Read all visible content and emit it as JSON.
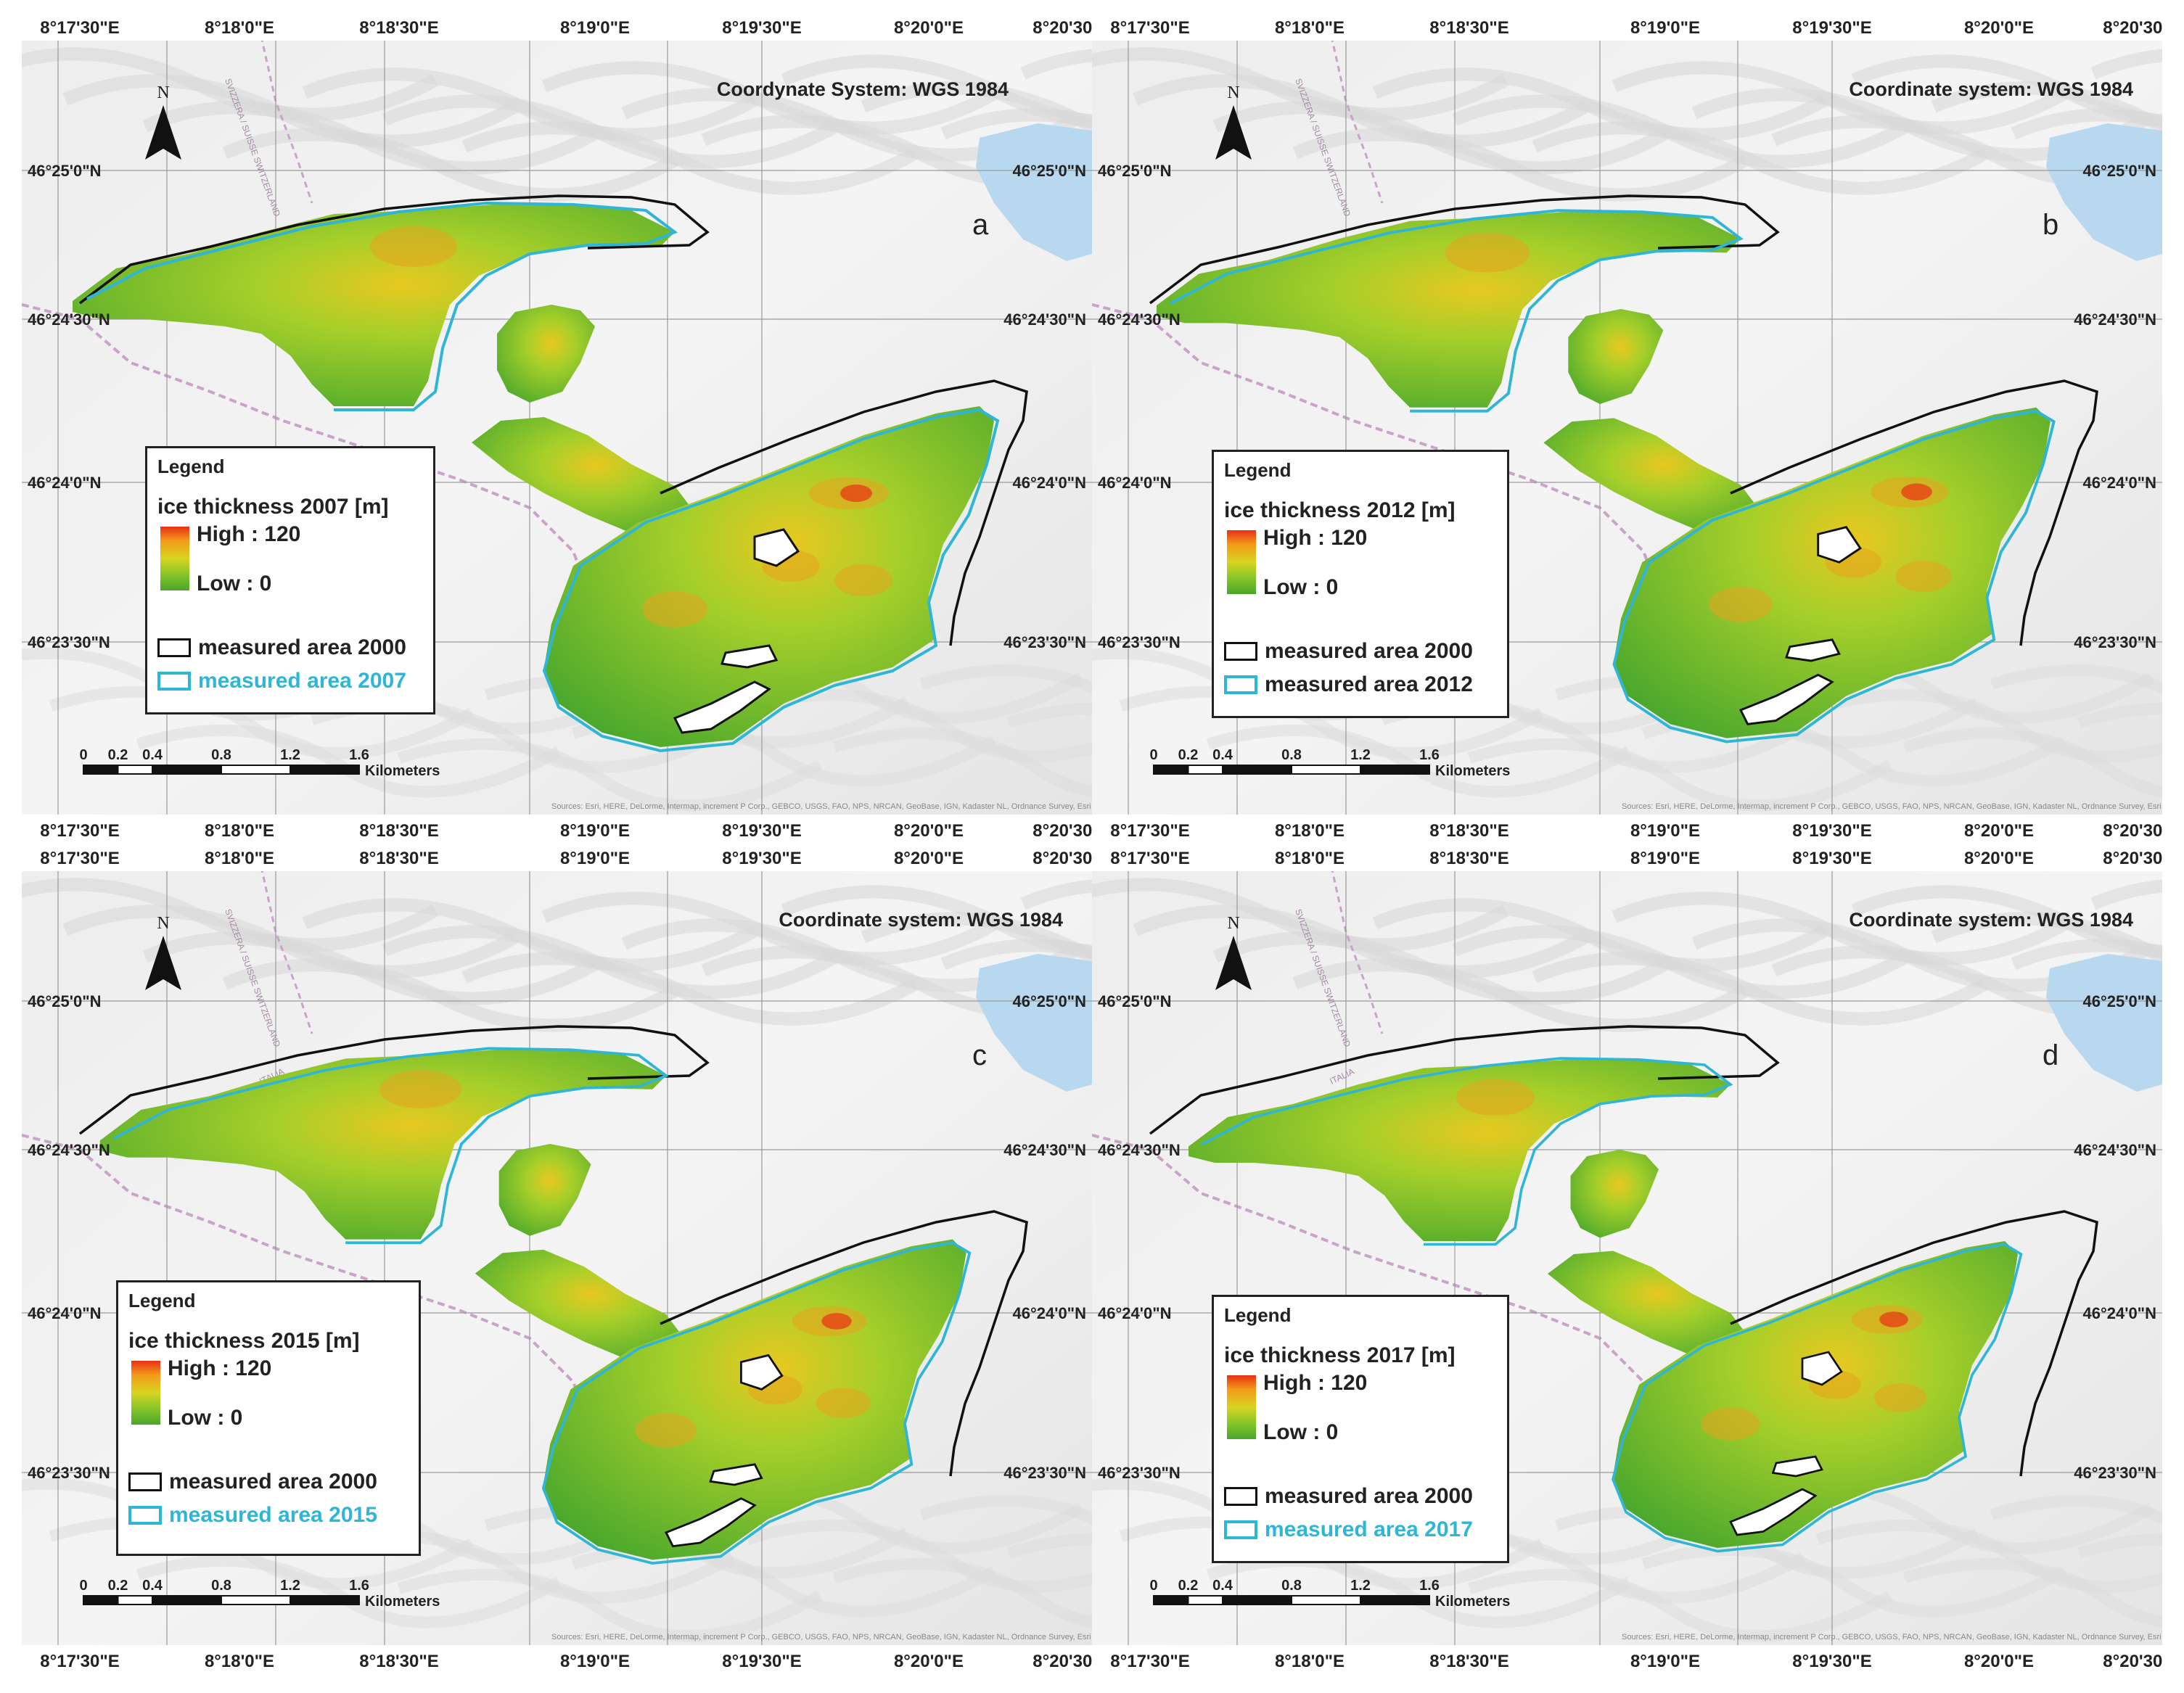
{
  "figure": {
    "panels": [
      {
        "id": "a",
        "label": "a",
        "coord_system": "Coordynate System: WGS 1984",
        "legend_title": "Legend",
        "ramp_title": "ice thickness 2007 [m]",
        "high": "High : 120",
        "low": "Low : 0",
        "area_2000": "measured area 2000",
        "area_year": "measured area 2007",
        "area_year_color": "#2fb5d6"
      },
      {
        "id": "b",
        "label": "b",
        "coord_system": "Coordinate system: WGS 1984",
        "legend_title": "Legend",
        "ramp_title": "ice thickness 2012 [m]",
        "high": "High : 120",
        "low": "Low : 0",
        "area_2000": "measured area 2000",
        "area_year": "measured area 2012",
        "area_year_color": "#222222"
      },
      {
        "id": "c",
        "label": "c",
        "coord_system": "Coordinate system: WGS 1984",
        "legend_title": "Legend",
        "ramp_title": "ice thickness 2015 [m]",
        "high": "High : 120",
        "low": "Low : 0",
        "area_2000": "measured area 2000",
        "area_year": "measured area 2015",
        "area_year_color": "#2fb5d6"
      },
      {
        "id": "d",
        "label": "d",
        "coord_system": "Coordinate system: WGS 1984",
        "legend_title": "Legend",
        "ramp_title": "ice thickness 2017 [m]",
        "high": "High : 120",
        "low": "Low : 0",
        "area_2000": "measured area 2000",
        "area_year": "measured area 2017",
        "area_year_color": "#2fb5d6"
      }
    ],
    "lon_ticks": [
      "8°17'30\"E",
      "8°18'0\"E",
      "8°18'30\"E",
      "8°19'0\"E",
      "8°19'30\"E",
      "8°20'0\"E",
      "8°20'30\""
    ],
    "lat_ticks": [
      "46°25'0\"N",
      "46°24'30\"N",
      "46°24'0\"N",
      "46°23'30\"N"
    ],
    "scale_ticks": [
      "0",
      "0.2",
      "0.4",
      "0.8",
      "1.2",
      "1.6"
    ],
    "scale_unit": "Kilometers",
    "north_label": "N",
    "sources": "Sources: Esri, HERE, DeLorme, Intermap, increment P Corp., GEBCO, USGS, FAO, NPS, NRCAN, GeoBase, IGN, Kadaster NL, Ordnance Survey, Esri Japan, METI, Esri China (Hong Kong), swisstopo, MapmyIndia, © OpenStreetMap contributors, and the GIS User Community",
    "border_label": "SVIZZERA / SUISSE SWITZERLAND",
    "italia_label": "ITALIA"
  }
}
